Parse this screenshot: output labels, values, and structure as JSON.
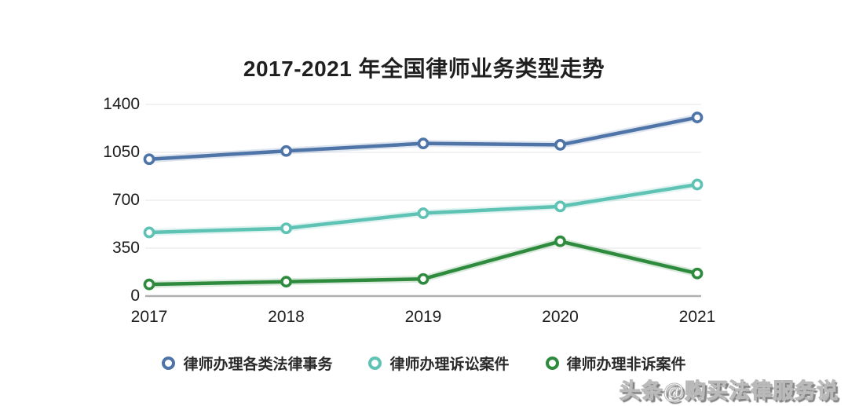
{
  "watermark": "头条@购买法律服务说",
  "chart_data": {
    "type": "line",
    "title": "2017-2021 年全国律师业务类型走势",
    "categories": [
      "2017",
      "2018",
      "2019",
      "2020",
      "2021"
    ],
    "series": [
      {
        "name": "律师办理各类法律事务",
        "color": "#4e74a8",
        "values": [
          1000,
          1060,
          1115,
          1105,
          1305
        ]
      },
      {
        "name": "律师办理诉讼案件",
        "color": "#5ec3b4",
        "values": [
          465,
          495,
          605,
          655,
          815
        ]
      },
      {
        "name": "律师办理非诉案件",
        "color": "#2e8b3d",
        "values": [
          85,
          105,
          125,
          400,
          165
        ]
      }
    ],
    "yticks": [
      0,
      350,
      700,
      1050,
      1400
    ],
    "ylim": [
      0,
      1400
    ],
    "xlabel": "",
    "ylabel": "",
    "grid": true,
    "legend_position": "bottom",
    "axis_line_color": "#b0b0b0",
    "grid_color": "#ededed"
  }
}
